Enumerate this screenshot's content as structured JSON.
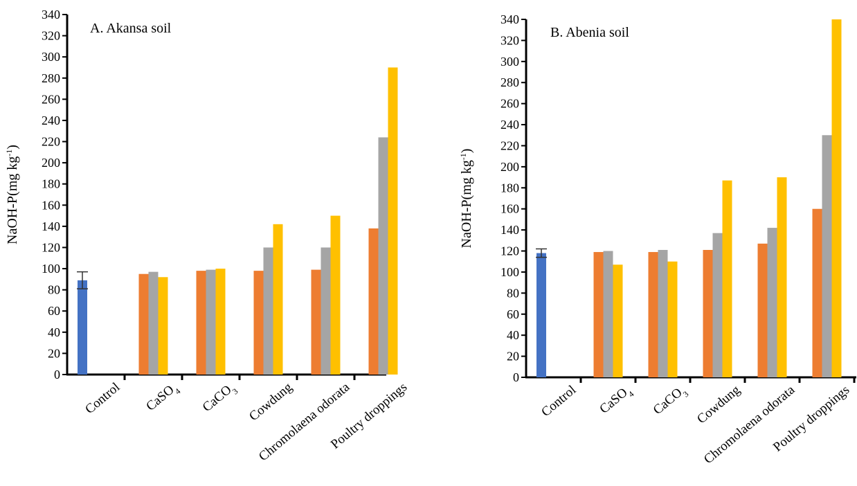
{
  "colors": {
    "control": "#4472C4",
    "series1": "#ED7D31",
    "series2": "#A5A5A5",
    "series3": "#FFC000",
    "axis": "#000000"
  },
  "categories": [
    "Control",
    "CaSO4",
    "CaCO3",
    "Cowdung",
    "Chromolaena odorata",
    "Poultry droppings"
  ],
  "chart_data": [
    {
      "type": "bar",
      "title": "A. Akansa soil",
      "ylabel": "NaOH-P(mg kg-1)",
      "xlabel": "",
      "ylim": [
        0,
        340
      ],
      "ytick_step": 20,
      "grid": false,
      "legend": "none",
      "categories": [
        "Control",
        "CaSO4",
        "CaCO3",
        "Cowdung",
        "Chromolaena odorata",
        "Poultry droppings"
      ],
      "control": {
        "value": 89,
        "error": 8
      },
      "series": [
        {
          "values": [
            null,
            95,
            98,
            98,
            99,
            138
          ]
        },
        {
          "values": [
            null,
            97,
            99,
            120,
            120,
            224
          ]
        },
        {
          "values": [
            null,
            92,
            100,
            142,
            150,
            290
          ]
        }
      ]
    },
    {
      "type": "bar",
      "title": "B. Abenia soil",
      "ylabel": "NaOH-P(mg kg-1)",
      "xlabel": "",
      "ylim": [
        0,
        340
      ],
      "ytick_step": 20,
      "grid": false,
      "legend": "none",
      "categories": [
        "Control",
        "CaSO4",
        "CaCO3",
        "Cowdung",
        "Chromolaena odorata",
        "Poultry droppings"
      ],
      "control": {
        "value": 118,
        "error": 4
      },
      "series": [
        {
          "values": [
            null,
            119,
            119,
            121,
            127,
            160
          ]
        },
        {
          "values": [
            null,
            120,
            121,
            137,
            142,
            230
          ]
        },
        {
          "values": [
            null,
            107,
            110,
            187,
            190,
            340
          ]
        }
      ]
    }
  ]
}
